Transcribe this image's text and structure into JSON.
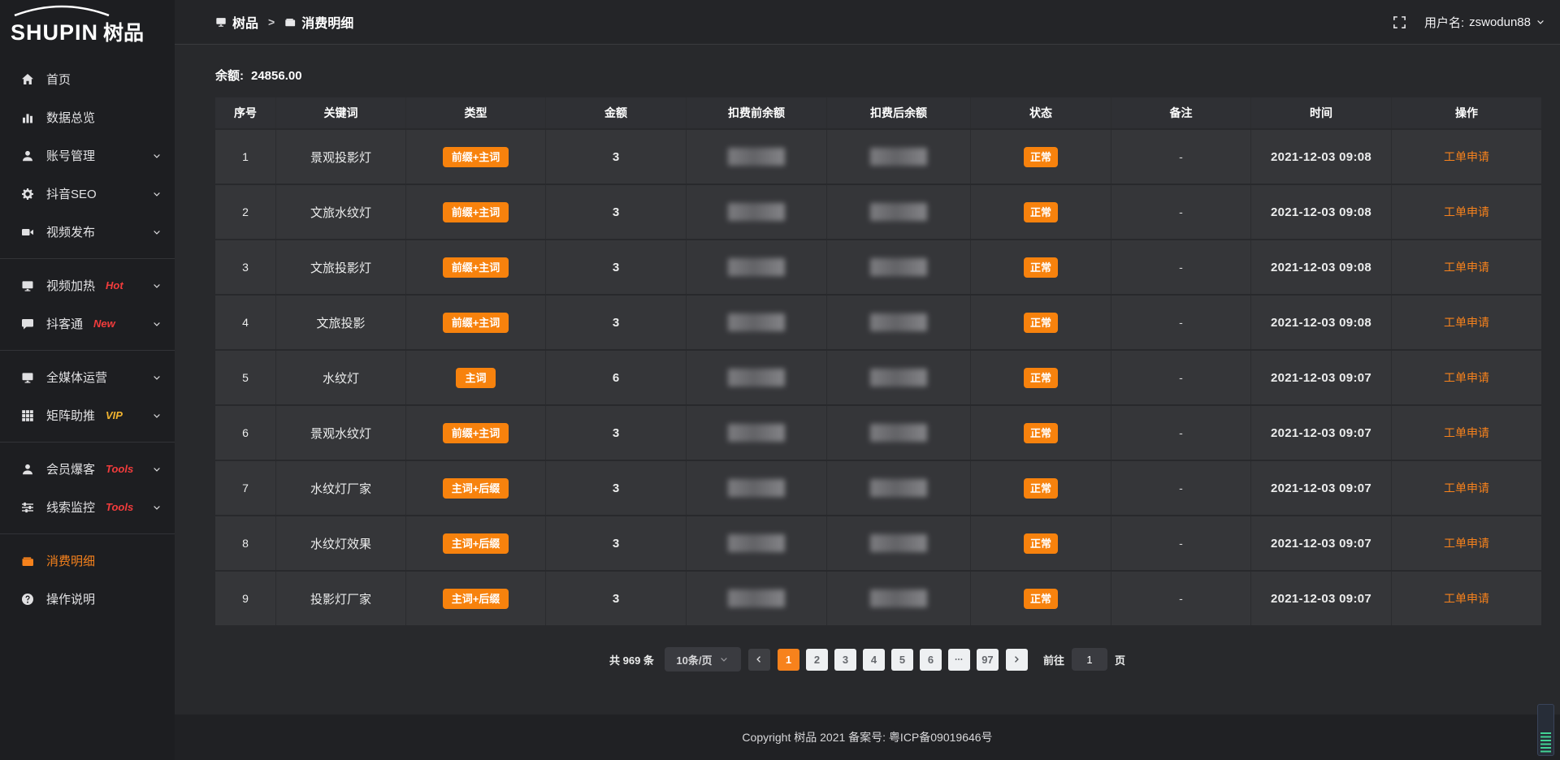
{
  "accent_colors": {
    "orange": "#f7821c",
    "red": "#f23c3c",
    "gold": "#f0b330"
  },
  "sidebar": {
    "logo_text": "SHUPIN",
    "logo_suffix": "树品",
    "items": [
      {
        "id": "home",
        "icon": "home",
        "label": "首页"
      },
      {
        "id": "data-overview",
        "icon": "bar-chart",
        "label": "数据总览"
      },
      {
        "id": "account-management",
        "icon": "user",
        "label": "账号管理",
        "chevron": true
      },
      {
        "id": "douyin-seo",
        "icon": "gear",
        "label": "抖音SEO",
        "chevron": true
      },
      {
        "id": "video-publish",
        "icon": "video",
        "label": "视频发布",
        "chevron": true,
        "divider_after": true
      },
      {
        "id": "video-heating",
        "icon": "display",
        "label": "视频加热",
        "tag": "Hot",
        "tag_color": "#f23c3c",
        "chevron": true
      },
      {
        "id": "douketong",
        "icon": "chat",
        "label": "抖客通",
        "tag": "New",
        "tag_color": "#f23c3c",
        "chevron": true,
        "divider_after": true
      },
      {
        "id": "omni-media",
        "icon": "monitor",
        "label": "全媒体运营",
        "chevron": true
      },
      {
        "id": "matrix-boost",
        "icon": "grid",
        "label": "矩阵助推",
        "tag": "VIP",
        "tag_color": "#f0b330",
        "chevron": true,
        "divider_after": true
      },
      {
        "id": "member-baoke",
        "icon": "user",
        "label": "会员爆客",
        "tag": "Tools",
        "tag_color": "#f23c3c",
        "chevron": true
      },
      {
        "id": "clue-monitor",
        "icon": "sliders",
        "label": "线索监控",
        "tag": "Tools",
        "tag_color": "#f23c3c",
        "chevron": true,
        "divider_after": true
      },
      {
        "id": "consumption-detail",
        "icon": "wallet",
        "label": "消费明细",
        "active": true
      },
      {
        "id": "instructions",
        "icon": "question",
        "label": "操作说明"
      }
    ]
  },
  "topbar": {
    "breadcrumb": [
      {
        "icon": "monitor",
        "label": "树品"
      },
      {
        "icon": "wallet",
        "label": "消费明细"
      }
    ],
    "separator": ">",
    "fullscreen_icon": "fullscreen",
    "username_label": "用户名:",
    "username": "zswodun88"
  },
  "balance": {
    "label": "余额:",
    "value": "24856.00"
  },
  "table": {
    "columns": [
      "序号",
      "关键词",
      "类型",
      "金额",
      "扣费前余额",
      "扣费后余额",
      "状态",
      "备注",
      "时间",
      "操作"
    ],
    "balance_columns_redacted": true,
    "rows": [
      {
        "no": "1",
        "keyword": "景观投影灯",
        "type": "前缀+主词",
        "amount": "3",
        "status": "正常",
        "note": "-",
        "time": "2021-12-03 09:08",
        "action": "工单申请"
      },
      {
        "no": "2",
        "keyword": "文旅水纹灯",
        "type": "前缀+主词",
        "amount": "3",
        "status": "正常",
        "note": "-",
        "time": "2021-12-03 09:08",
        "action": "工单申请"
      },
      {
        "no": "3",
        "keyword": "文旅投影灯",
        "type": "前缀+主词",
        "amount": "3",
        "status": "正常",
        "note": "-",
        "time": "2021-12-03 09:08",
        "action": "工单申请"
      },
      {
        "no": "4",
        "keyword": "文旅投影",
        "type": "前缀+主词",
        "amount": "3",
        "status": "正常",
        "note": "-",
        "time": "2021-12-03 09:08",
        "action": "工单申请"
      },
      {
        "no": "5",
        "keyword": "水纹灯",
        "type": "主词",
        "amount": "6",
        "status": "正常",
        "note": "-",
        "time": "2021-12-03 09:07",
        "action": "工单申请"
      },
      {
        "no": "6",
        "keyword": "景观水纹灯",
        "type": "前缀+主词",
        "amount": "3",
        "status": "正常",
        "note": "-",
        "time": "2021-12-03 09:07",
        "action": "工单申请"
      },
      {
        "no": "7",
        "keyword": "水纹灯厂家",
        "type": "主词+后缀",
        "amount": "3",
        "status": "正常",
        "note": "-",
        "time": "2021-12-03 09:07",
        "action": "工单申请"
      },
      {
        "no": "8",
        "keyword": "水纹灯效果",
        "type": "主词+后缀",
        "amount": "3",
        "status": "正常",
        "note": "-",
        "time": "2021-12-03 09:07",
        "action": "工单申请"
      },
      {
        "no": "9",
        "keyword": "投影灯厂家",
        "type": "主词+后缀",
        "amount": "3",
        "status": "正常",
        "note": "-",
        "time": "2021-12-03 09:07",
        "action": "工单申请"
      }
    ]
  },
  "pagination": {
    "total": "共 969 条",
    "page_size": "10条/页",
    "pages": [
      "1",
      "2",
      "3",
      "4",
      "5",
      "6",
      "...",
      "97"
    ],
    "active_page": "1",
    "prev_icon": "chevron-left",
    "next_icon": "chevron-right",
    "more_icon": "ellipsis",
    "goto_label": "前往",
    "goto_value": "1",
    "goto_unit": "页"
  },
  "footer": {
    "copyright": "Copyright 树品 2021 备案号: 粤ICP备09019646号"
  }
}
